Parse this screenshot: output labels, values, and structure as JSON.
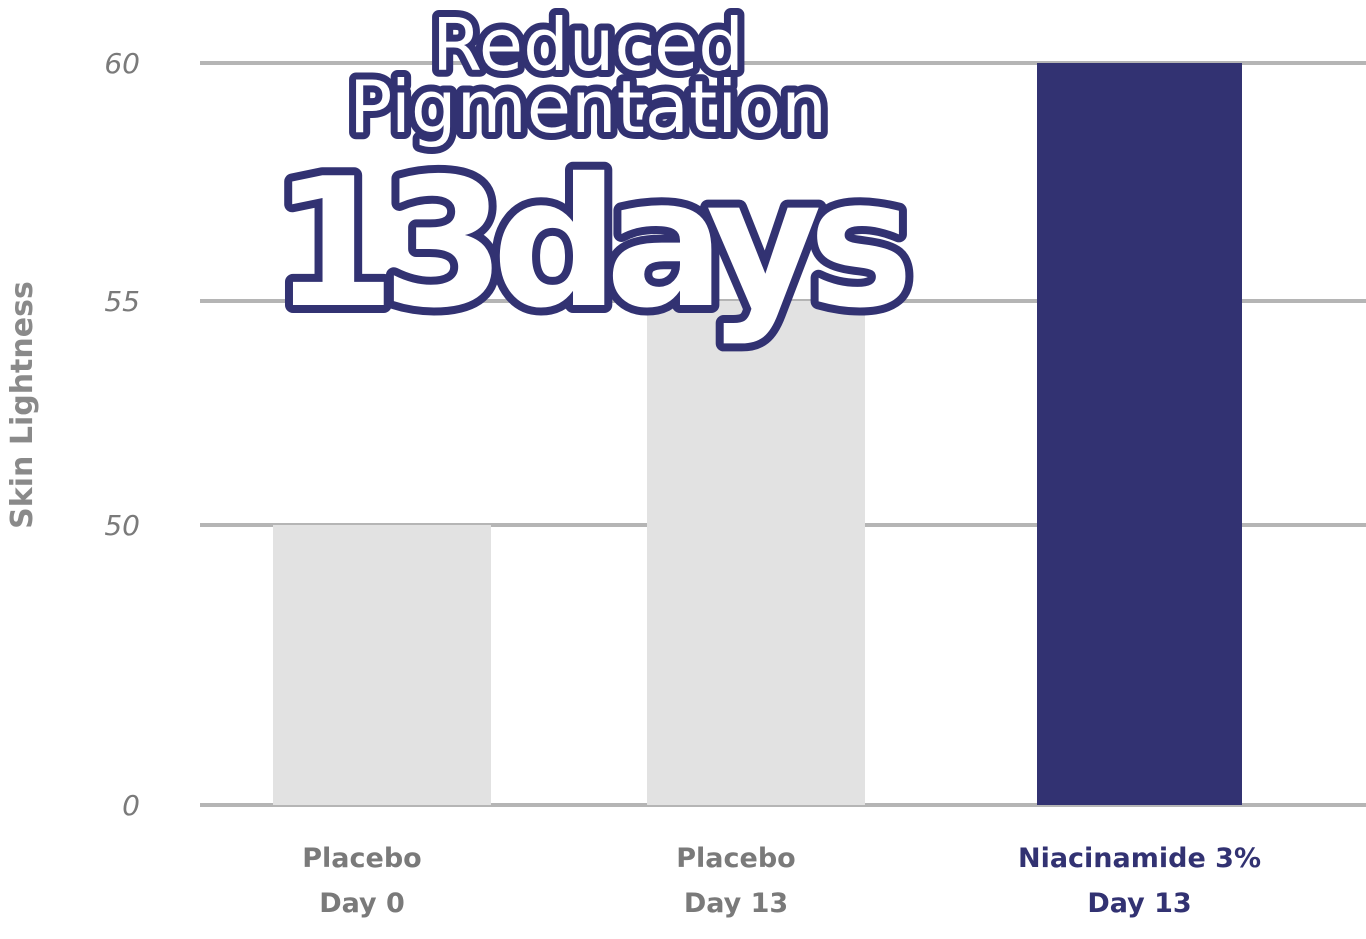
{
  "chart_data": {
    "type": "bar",
    "title": "Reduced Pigmentation",
    "subtitle": "13days",
    "ylabel": "Skin Lightness",
    "xlabel": "",
    "yticks": [
      0,
      50,
      55,
      60
    ],
    "ylim": [
      0,
      60
    ],
    "y_scale": "broken (non-linear spacing between 0 and 50)",
    "grid": true,
    "categories": [
      {
        "line1": "Placebo",
        "line2": "Day 0"
      },
      {
        "line1": "Placebo",
        "line2": "Day 13"
      },
      {
        "line1": "Niacinamide 3%",
        "line2": "Day 13"
      }
    ],
    "values": [
      50,
      55,
      60
    ],
    "bar_colors": [
      "#e2e2e2",
      "#e2e2e2",
      "#323272"
    ],
    "label_colors": [
      "#7a7a7a",
      "#7a7a7a",
      "#323272"
    ],
    "colors": {
      "accent": "#323272",
      "grid": "#b5b5b5",
      "placebo": "#e2e2e2"
    }
  }
}
